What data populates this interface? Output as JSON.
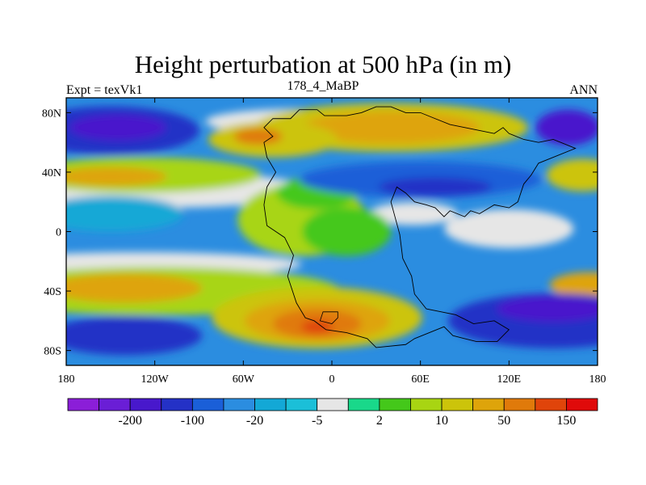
{
  "chart_data": {
    "type": "heatmap",
    "title": "Height perturbation at 500 hPa (in m)",
    "subtitle_left": "Expt = texVk1",
    "subtitle_center": "178_4_MaBP",
    "subtitle_right": "ANN",
    "xlabel": "",
    "ylabel": "",
    "xlim": [
      -180,
      180
    ],
    "ylim": [
      -90,
      90
    ],
    "x_ticks": [
      {
        "value": -180,
        "label": "180"
      },
      {
        "value": -120,
        "label": "120W"
      },
      {
        "value": -60,
        "label": "60W"
      },
      {
        "value": 0,
        "label": "0"
      },
      {
        "value": 60,
        "label": "60E"
      },
      {
        "value": 120,
        "label": "120E"
      },
      {
        "value": 180,
        "label": "180"
      }
    ],
    "y_ticks": [
      {
        "value": 80,
        "label": "80N"
      },
      {
        "value": 40,
        "label": "40N"
      },
      {
        "value": 0,
        "label": "0"
      },
      {
        "value": -40,
        "label": "40S"
      },
      {
        "value": -80,
        "label": "80S"
      }
    ],
    "colorbar": {
      "colors": [
        "#8b1ed8",
        "#6a1ed6",
        "#4818cc",
        "#2431c6",
        "#1a5fd8",
        "#2b8de0",
        "#13a8d6",
        "#1bbfd8",
        "#e6e6e6",
        "#19d88a",
        "#44c81a",
        "#a8d512",
        "#ccc40a",
        "#dea40a",
        "#e07a0a",
        "#e0440a",
        "#e00a0a"
      ],
      "labels": [
        {
          "after_index": 1,
          "text": "-200"
        },
        {
          "after_index": 3,
          "text": "-100"
        },
        {
          "after_index": 5,
          "text": "-20"
        },
        {
          "after_index": 7,
          "text": "-5"
        },
        {
          "after_index": 9,
          "text": "2"
        },
        {
          "after_index": 11,
          "text": "10"
        },
        {
          "after_index": 13,
          "text": "50"
        },
        {
          "after_index": 15,
          "text": "150"
        }
      ]
    },
    "field_regions": [
      {
        "desc": "south polar low",
        "lon": -150,
        "lat": -70,
        "value": -120
      },
      {
        "desc": "south subtropical high belt",
        "lon": -150,
        "lat": -40,
        "value": 50
      },
      {
        "desc": "southern high (max)",
        "lon": -10,
        "lat": -65,
        "value": 160
      },
      {
        "desc": "equatorial band west",
        "lon": -150,
        "lat": 10,
        "value": -10
      },
      {
        "desc": "continental high",
        "lon": -20,
        "lat": 10,
        "value": 20
      },
      {
        "desc": "northern high",
        "lon": 40,
        "lat": 70,
        "value": 60
      },
      {
        "desc": "north pacific low",
        "lon": -140,
        "lat": 65,
        "value": -110
      },
      {
        "desc": "mid-latitude low",
        "lon": 70,
        "lat": 35,
        "value": -40
      },
      {
        "desc": "equatorial east neutral",
        "lon": 120,
        "lat": 0,
        "value": 0
      },
      {
        "desc": "southeast low",
        "lon": 150,
        "lat": -50,
        "value": -90
      }
    ]
  }
}
